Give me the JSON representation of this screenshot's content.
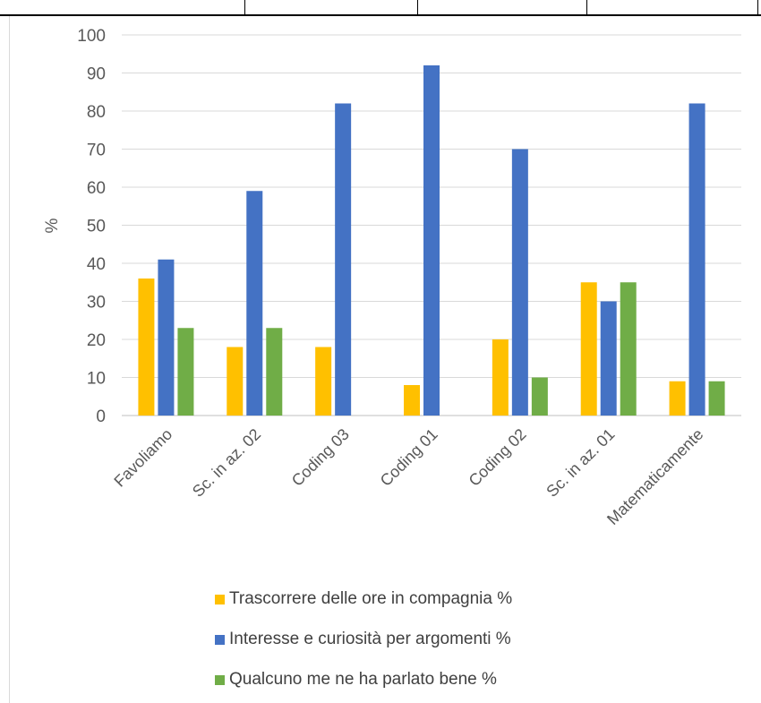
{
  "chart_data": {
    "type": "bar",
    "categories": [
      "Favoliamo",
      "Sc. in az. 02",
      "Coding 03",
      "Coding 01",
      "Coding 02",
      "Sc. in az. 01",
      "Matematicamente"
    ],
    "series": [
      {
        "name": "Trascorrere  delle ore in  compagnia %",
        "color": "#FFC000",
        "values": [
          36,
          18,
          18,
          8,
          20,
          35,
          9
        ]
      },
      {
        "name": "Interesse e curiosità per argomenti %",
        "color": "#4472C4",
        "values": [
          41,
          59,
          82,
          92,
          70,
          30,
          82
        ]
      },
      {
        "name": "Qualcuno me ne ha parlato bene %",
        "color": "#70AD47",
        "values": [
          23,
          23,
          0,
          0,
          10,
          35,
          9
        ]
      }
    ],
    "ylabel": "%",
    "ylim": [
      0,
      100
    ],
    "yticks": [
      0,
      10,
      20,
      30,
      40,
      50,
      60,
      70,
      80,
      90,
      100
    ],
    "grid": true,
    "legend_position": "bottom"
  }
}
